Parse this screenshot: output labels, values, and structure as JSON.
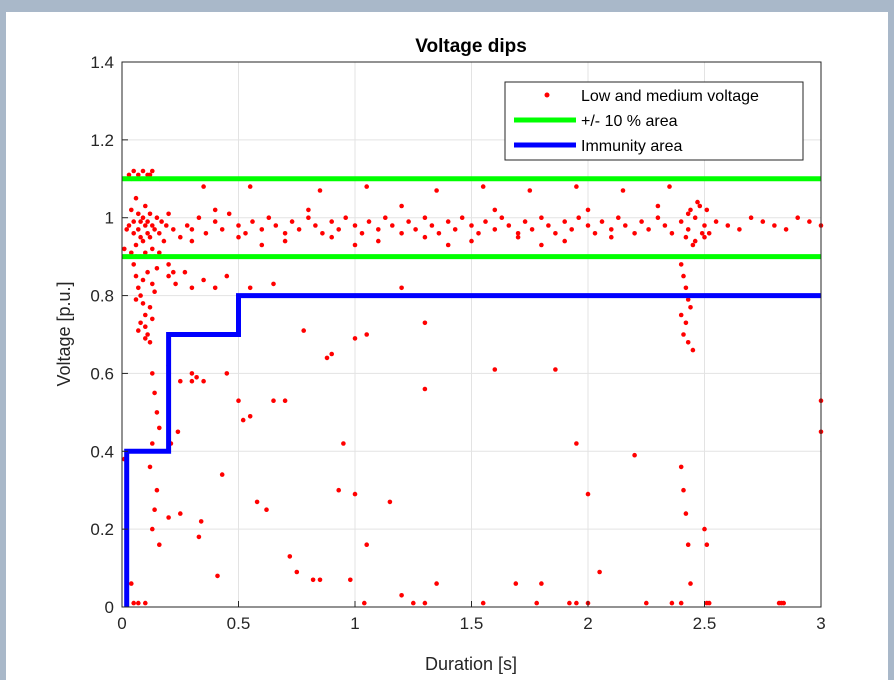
{
  "chart_data": {
    "type": "scatter",
    "title": "Voltage dips",
    "xlabel": "Duration [s]",
    "ylabel": "Voltage [p.u.]",
    "xlim": [
      0,
      3
    ],
    "ylim": [
      0,
      1.4
    ],
    "xticks": [
      0,
      0.5,
      1,
      1.5,
      2,
      2.5,
      3
    ],
    "xtick_labels": [
      "0",
      "0.5",
      "1",
      "1.5",
      "2",
      "2.5",
      "3"
    ],
    "yticks": [
      0,
      0.2,
      0.4,
      0.6,
      0.8,
      1,
      1.2,
      1.4
    ],
    "ytick_labels": [
      "0",
      "0.2",
      "0.4",
      "0.6",
      "0.8",
      "1",
      "1.2",
      "1.4"
    ],
    "grid": true,
    "legend_position": "top-right",
    "series": [
      {
        "name": "Low and medium voltage",
        "kind": "scatter",
        "color": "#ff0000",
        "points": [
          [
            0.01,
            0.92
          ],
          [
            0.02,
            0.97
          ],
          [
            0.03,
            0.98
          ],
          [
            0.04,
            1.02
          ],
          [
            0.05,
            0.96
          ],
          [
            0.05,
            0.99
          ],
          [
            0.06,
            1.05
          ],
          [
            0.06,
            0.93
          ],
          [
            0.07,
            0.97
          ],
          [
            0.07,
            1.01
          ],
          [
            0.08,
            0.95
          ],
          [
            0.08,
            0.99
          ],
          [
            0.09,
            1.0
          ],
          [
            0.09,
            0.94
          ],
          [
            0.1,
            0.98
          ],
          [
            0.1,
            1.03
          ],
          [
            0.11,
            0.96
          ],
          [
            0.11,
            0.99
          ],
          [
            0.12,
            1.01
          ],
          [
            0.12,
            0.95
          ],
          [
            0.13,
            0.98
          ],
          [
            0.13,
            0.92
          ],
          [
            0.14,
            0.97
          ],
          [
            0.15,
            1.0
          ],
          [
            0.16,
            0.96
          ],
          [
            0.17,
            0.99
          ],
          [
            0.18,
            0.94
          ],
          [
            0.19,
            0.98
          ],
          [
            0.2,
            1.01
          ],
          [
            0.22,
            0.97
          ],
          [
            0.03,
            1.11
          ],
          [
            0.05,
            1.12
          ],
          [
            0.07,
            1.11
          ],
          [
            0.09,
            1.12
          ],
          [
            0.11,
            1.11
          ],
          [
            0.13,
            1.12
          ],
          [
            0.04,
            1.1
          ],
          [
            0.08,
            1.1
          ],
          [
            0.12,
            1.11
          ],
          [
            0.16,
            1.1
          ],
          [
            0.05,
            0.88
          ],
          [
            0.06,
            0.85
          ],
          [
            0.07,
            0.82
          ],
          [
            0.08,
            0.8
          ],
          [
            0.09,
            0.78
          ],
          [
            0.1,
            0.75
          ],
          [
            0.1,
            0.72
          ],
          [
            0.11,
            0.7
          ],
          [
            0.12,
            0.68
          ],
          [
            0.09,
            0.84
          ],
          [
            0.11,
            0.86
          ],
          [
            0.13,
            0.83
          ],
          [
            0.14,
            0.81
          ],
          [
            0.15,
            0.87
          ],
          [
            0.08,
            0.73
          ],
          [
            0.06,
            0.79
          ],
          [
            0.12,
            0.77
          ],
          [
            0.13,
            0.74
          ],
          [
            0.07,
            0.71
          ],
          [
            0.1,
            0.69
          ],
          [
            0.04,
            0.91
          ],
          [
            0.06,
            0.9
          ],
          [
            0.08,
            0.9
          ],
          [
            0.1,
            0.91
          ],
          [
            0.12,
            0.9
          ],
          [
            0.14,
            0.9
          ],
          [
            0.16,
            0.91
          ],
          [
            0.18,
            0.9
          ],
          [
            0.2,
            0.88
          ],
          [
            0.22,
            0.86
          ],
          [
            0.25,
            0.95
          ],
          [
            0.28,
            0.98
          ],
          [
            0.3,
            0.97
          ],
          [
            0.33,
            1.0
          ],
          [
            0.36,
            0.96
          ],
          [
            0.4,
            0.99
          ],
          [
            0.43,
            0.97
          ],
          [
            0.46,
            1.01
          ],
          [
            0.5,
            0.98
          ],
          [
            0.53,
            0.96
          ],
          [
            0.56,
            0.99
          ],
          [
            0.6,
            0.97
          ],
          [
            0.63,
            1.0
          ],
          [
            0.66,
            0.98
          ],
          [
            0.7,
            0.96
          ],
          [
            0.73,
            0.99
          ],
          [
            0.76,
            0.97
          ],
          [
            0.8,
            1.0
          ],
          [
            0.83,
            0.98
          ],
          [
            0.86,
            0.96
          ],
          [
            0.9,
            0.99
          ],
          [
            0.93,
            0.97
          ],
          [
            0.96,
            1.0
          ],
          [
            1.0,
            0.98
          ],
          [
            1.03,
            0.96
          ],
          [
            1.06,
            0.99
          ],
          [
            1.1,
            0.97
          ],
          [
            1.13,
            1.0
          ],
          [
            1.16,
            0.98
          ],
          [
            1.2,
            0.96
          ],
          [
            1.23,
            0.99
          ],
          [
            1.26,
            0.97
          ],
          [
            1.3,
            1.0
          ],
          [
            1.33,
            0.98
          ],
          [
            1.36,
            0.96
          ],
          [
            1.4,
            0.99
          ],
          [
            1.43,
            0.97
          ],
          [
            1.46,
            1.0
          ],
          [
            1.5,
            0.98
          ],
          [
            1.53,
            0.96
          ],
          [
            1.56,
            0.99
          ],
          [
            1.6,
            0.97
          ],
          [
            1.63,
            1.0
          ],
          [
            1.66,
            0.98
          ],
          [
            1.7,
            0.96
          ],
          [
            1.73,
            0.99
          ],
          [
            1.76,
            0.97
          ],
          [
            1.8,
            1.0
          ],
          [
            1.83,
            0.98
          ],
          [
            1.86,
            0.96
          ],
          [
            1.9,
            0.99
          ],
          [
            1.93,
            0.97
          ],
          [
            1.96,
            1.0
          ],
          [
            2.0,
            0.98
          ],
          [
            2.03,
            0.96
          ],
          [
            2.06,
            0.99
          ],
          [
            2.1,
            0.97
          ],
          [
            2.13,
            1.0
          ],
          [
            2.16,
            0.98
          ],
          [
            2.2,
            0.96
          ],
          [
            2.23,
            0.99
          ],
          [
            2.26,
            0.97
          ],
          [
            2.3,
            1.0
          ],
          [
            2.33,
            0.98
          ],
          [
            2.36,
            0.96
          ],
          [
            2.4,
            0.99
          ],
          [
            2.43,
            0.97
          ],
          [
            2.46,
            1.0
          ],
          [
            2.5,
            0.98
          ],
          [
            2.52,
            0.96
          ],
          [
            2.55,
            0.99
          ],
          [
            2.6,
            0.98
          ],
          [
            2.65,
            0.97
          ],
          [
            2.7,
            1.0
          ],
          [
            2.75,
            0.99
          ],
          [
            2.8,
            0.98
          ],
          [
            2.85,
            0.97
          ],
          [
            2.9,
            1.0
          ],
          [
            2.95,
            0.99
          ],
          [
            3.0,
            0.98
          ],
          [
            2.42,
            0.95
          ],
          [
            2.44,
            1.02
          ],
          [
            2.46,
            0.94
          ],
          [
            2.48,
            1.03
          ],
          [
            2.5,
            0.95
          ],
          [
            2.45,
            0.93
          ],
          [
            2.47,
            1.04
          ],
          [
            2.49,
            0.96
          ],
          [
            2.51,
            1.02
          ],
          [
            2.43,
            1.01
          ],
          [
            0.3,
            0.94
          ],
          [
            0.5,
            0.95
          ],
          [
            0.7,
            0.94
          ],
          [
            0.9,
            0.95
          ],
          [
            1.1,
            0.94
          ],
          [
            1.3,
            0.95
          ],
          [
            1.5,
            0.94
          ],
          [
            1.7,
            0.95
          ],
          [
            1.9,
            0.94
          ],
          [
            2.1,
            0.95
          ],
          [
            0.4,
            1.02
          ],
          [
            0.8,
            1.02
          ],
          [
            1.2,
            1.03
          ],
          [
            1.6,
            1.02
          ],
          [
            2.0,
            1.02
          ],
          [
            2.3,
            1.03
          ],
          [
            0.6,
            0.93
          ],
          [
            1.0,
            0.93
          ],
          [
            1.4,
            0.93
          ],
          [
            1.8,
            0.93
          ],
          [
            0.35,
            1.08
          ],
          [
            0.55,
            1.08
          ],
          [
            0.85,
            1.07
          ],
          [
            1.05,
            1.08
          ],
          [
            1.35,
            1.07
          ],
          [
            1.55,
            1.08
          ],
          [
            1.75,
            1.07
          ],
          [
            1.95,
            1.08
          ],
          [
            2.15,
            1.07
          ],
          [
            2.35,
            1.08
          ],
          [
            0.2,
            0.85
          ],
          [
            0.23,
            0.83
          ],
          [
            0.27,
            0.86
          ],
          [
            0.3,
            0.82
          ],
          [
            0.35,
            0.84
          ],
          [
            0.4,
            0.82
          ],
          [
            0.45,
            0.85
          ],
          [
            0.55,
            0.82
          ],
          [
            0.65,
            0.83
          ],
          [
            1.2,
            0.82
          ],
          [
            2.4,
            0.88
          ],
          [
            2.41,
            0.85
          ],
          [
            2.42,
            0.82
          ],
          [
            2.43,
            0.79
          ],
          [
            2.42,
            0.73
          ],
          [
            2.41,
            0.7
          ],
          [
            2.43,
            0.68
          ],
          [
            2.4,
            0.75
          ],
          [
            2.44,
            0.77
          ],
          [
            2.45,
            0.66
          ],
          [
            0.13,
            0.6
          ],
          [
            0.14,
            0.55
          ],
          [
            0.15,
            0.5
          ],
          [
            0.16,
            0.46
          ],
          [
            0.13,
            0.42
          ],
          [
            0.12,
            0.36
          ],
          [
            0.15,
            0.3
          ],
          [
            0.14,
            0.25
          ],
          [
            0.13,
            0.2
          ],
          [
            0.16,
            0.16
          ],
          [
            0.2,
            0.62
          ],
          [
            0.25,
            0.58
          ],
          [
            0.3,
            0.6
          ],
          [
            0.35,
            0.58
          ],
          [
            0.45,
            0.6
          ],
          [
            0.5,
            0.53
          ],
          [
            0.52,
            0.48
          ],
          [
            0.55,
            0.49
          ],
          [
            0.65,
            0.53
          ],
          [
            0.7,
            0.53
          ],
          [
            0.9,
            0.65
          ],
          [
            1.0,
            0.69
          ],
          [
            1.05,
            0.7
          ],
          [
            1.3,
            0.73
          ],
          [
            1.6,
            0.61
          ],
          [
            1.86,
            0.61
          ],
          [
            1.3,
            0.56
          ],
          [
            0.88,
            0.64
          ],
          [
            0.78,
            0.71
          ],
          [
            0.95,
            0.42
          ],
          [
            0.58,
            0.27
          ],
          [
            0.62,
            0.25
          ],
          [
            0.72,
            0.13
          ],
          [
            0.75,
            0.09
          ],
          [
            0.82,
            0.07
          ],
          [
            0.85,
            0.07
          ],
          [
            0.93,
            0.3
          ],
          [
            0.98,
            0.07
          ],
          [
            1.0,
            0.29
          ],
          [
            1.05,
            0.16
          ],
          [
            1.15,
            0.27
          ],
          [
            1.2,
            0.03
          ],
          [
            1.25,
            0.01
          ],
          [
            1.3,
            0.01
          ],
          [
            1.35,
            0.06
          ],
          [
            1.69,
            0.06
          ],
          [
            1.8,
            0.06
          ],
          [
            1.95,
            0.42
          ],
          [
            2.0,
            0.29
          ],
          [
            2.05,
            0.09
          ],
          [
            2.2,
            0.39
          ],
          [
            2.25,
            0.01
          ],
          [
            2.4,
            0.36
          ],
          [
            2.41,
            0.3
          ],
          [
            2.42,
            0.24
          ],
          [
            2.43,
            0.16
          ],
          [
            2.44,
            0.06
          ],
          [
            2.5,
            0.2
          ],
          [
            2.51,
            0.16
          ],
          [
            2.82,
            0.01
          ],
          [
            2.83,
            0.01
          ],
          [
            2.84,
            0.01
          ],
          [
            3.0,
            0.53
          ],
          [
            3.0,
            0.45
          ],
          [
            0.01,
            0.38
          ],
          [
            0.02,
            0.24
          ],
          [
            0.04,
            0.06
          ],
          [
            0.05,
            0.01
          ],
          [
            0.07,
            0.01
          ],
          [
            0.1,
            0.01
          ],
          [
            1.04,
            0.01
          ],
          [
            1.55,
            0.01
          ],
          [
            1.78,
            0.01
          ],
          [
            1.92,
            0.01
          ],
          [
            1.95,
            0.01
          ],
          [
            2.0,
            0.01
          ],
          [
            2.36,
            0.01
          ],
          [
            2.4,
            0.01
          ],
          [
            2.51,
            0.01
          ],
          [
            2.52,
            0.01
          ],
          [
            0.33,
            0.18
          ],
          [
            0.34,
            0.22
          ],
          [
            0.41,
            0.08
          ],
          [
            0.43,
            0.34
          ],
          [
            0.25,
            0.24
          ],
          [
            0.2,
            0.23
          ],
          [
            0.21,
            0.42
          ],
          [
            0.24,
            0.45
          ],
          [
            0.3,
            0.58
          ],
          [
            0.32,
            0.59
          ]
        ]
      },
      {
        "name": "+/- 10 % area",
        "kind": "line",
        "color": "#00ff00",
        "segments": [
          [
            [
              0,
              1.1
            ],
            [
              3,
              1.1
            ]
          ],
          [
            [
              0,
              0.9
            ],
            [
              3,
              0.9
            ]
          ]
        ]
      },
      {
        "name": "Immunity area",
        "kind": "line",
        "color": "#0000ff",
        "points": [
          [
            0.02,
            0
          ],
          [
            0.02,
            0.4
          ],
          [
            0.2,
            0.4
          ],
          [
            0.2,
            0.7
          ],
          [
            0.5,
            0.7
          ],
          [
            0.5,
            0.8
          ],
          [
            3,
            0.8
          ]
        ]
      }
    ]
  }
}
